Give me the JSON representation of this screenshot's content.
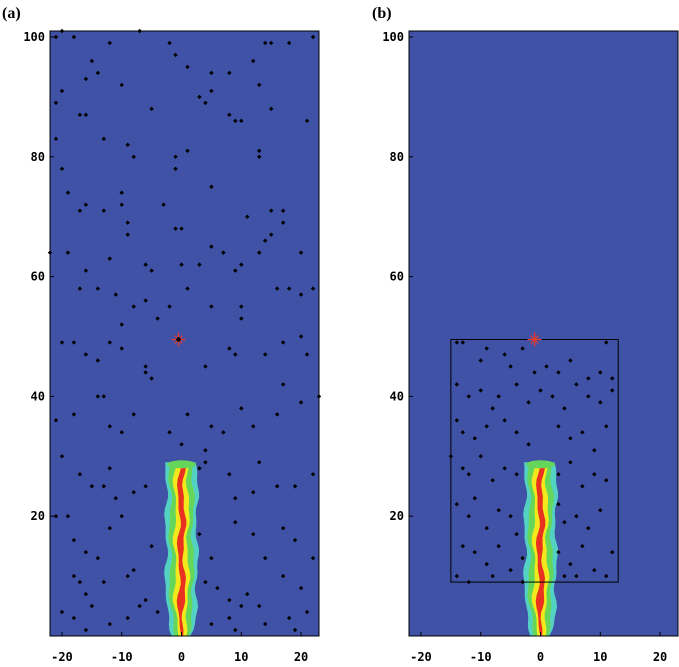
{
  "chart_data": [
    {
      "type": "scatter",
      "panel_label": "(a)",
      "xlim": [
        -22,
        23
      ],
      "ylim": [
        0,
        101
      ],
      "xticks": [
        -20,
        -10,
        0,
        10,
        20
      ],
      "yticks": [
        20,
        40,
        60,
        80,
        100
      ],
      "xtick_labels": [
        "-20",
        "-10",
        "0",
        "10",
        "20"
      ],
      "ytick_labels": [
        "20",
        "40",
        "60",
        "80",
        "100"
      ],
      "background_color": "#3f52a6",
      "source_marker": {
        "x": -0.5,
        "y": 49.5,
        "symbol": "star",
        "color": "#e53a2b"
      },
      "plume": {
        "x_center": 0,
        "y_range": [
          0,
          29
        ],
        "colors": [
          "#e8321f",
          "#f2e81b",
          "#66d65a",
          "#53d2c4"
        ]
      },
      "points": [
        [
          -21,
          100
        ],
        [
          -20,
          101
        ],
        [
          -18,
          100
        ],
        [
          -12,
          99
        ],
        [
          -7,
          101
        ],
        [
          -2,
          99
        ],
        [
          -1,
          97
        ],
        [
          1,
          95
        ],
        [
          5,
          94
        ],
        [
          8,
          94
        ],
        [
          14,
          99
        ],
        [
          15,
          99
        ],
        [
          18,
          99
        ],
        [
          22,
          100
        ],
        [
          -21,
          89
        ],
        [
          -20,
          91
        ],
        [
          -15,
          96
        ],
        [
          -14,
          94
        ],
        [
          -16,
          93
        ],
        [
          -10,
          92
        ],
        [
          -16,
          87
        ],
        [
          -17,
          87
        ],
        [
          -5,
          88
        ],
        [
          3,
          90
        ],
        [
          4,
          89
        ],
        [
          5,
          91
        ],
        [
          8,
          87
        ],
        [
          9,
          86
        ],
        [
          10,
          86
        ],
        [
          12,
          96
        ],
        [
          13,
          92
        ],
        [
          15,
          88
        ],
        [
          21,
          86
        ],
        [
          -21,
          83
        ],
        [
          -13,
          83
        ],
        [
          -9,
          82
        ],
        [
          -8,
          80
        ],
        [
          -1,
          78
        ],
        [
          -1,
          80
        ],
        [
          1,
          81
        ],
        [
          13,
          81
        ],
        [
          13,
          80
        ],
        [
          -20,
          78
        ],
        [
          -19,
          74
        ],
        [
          -17,
          71
        ],
        [
          -16,
          72
        ],
        [
          -13,
          71
        ],
        [
          -10,
          74
        ],
        [
          -10,
          72
        ],
        [
          -9,
          69
        ],
        [
          -9,
          67
        ],
        [
          -3,
          72
        ],
        [
          -1,
          68
        ],
        [
          0,
          68
        ],
        [
          5,
          75
        ],
        [
          11,
          70
        ],
        [
          15,
          71
        ],
        [
          15,
          67
        ],
        [
          17,
          71
        ],
        [
          -22,
          64
        ],
        [
          -19,
          64
        ],
        [
          -16,
          61
        ],
        [
          -12,
          63
        ],
        [
          -6,
          62
        ],
        [
          -5,
          61
        ],
        [
          0,
          62
        ],
        [
          3,
          62
        ],
        [
          5,
          65
        ],
        [
          7,
          64
        ],
        [
          9,
          61
        ],
        [
          10,
          62
        ],
        [
          13,
          64
        ],
        [
          14,
          66
        ],
        [
          17,
          69
        ],
        [
          20,
          64
        ],
        [
          -17,
          58
        ],
        [
          -14,
          58
        ],
        [
          -11,
          57
        ],
        [
          -8,
          55
        ],
        [
          -6,
          56
        ],
        [
          -4,
          53
        ],
        [
          -2,
          55
        ],
        [
          1,
          58
        ],
        [
          5,
          55
        ],
        [
          10,
          53
        ],
        [
          10,
          55
        ],
        [
          16,
          58
        ],
        [
          18,
          58
        ],
        [
          20,
          57
        ],
        [
          22,
          58
        ],
        [
          -20,
          49
        ],
        [
          -18,
          49
        ],
        [
          -16,
          47
        ],
        [
          -14,
          46
        ],
        [
          -12,
          49
        ],
        [
          -10,
          52
        ],
        [
          -10,
          48
        ],
        [
          -6,
          45
        ],
        [
          -6,
          44
        ],
        [
          -5,
          43
        ],
        [
          4,
          45
        ],
        [
          8,
          48
        ],
        [
          9,
          47
        ],
        [
          14,
          47
        ],
        [
          17,
          49
        ],
        [
          20,
          50
        ],
        [
          21,
          47
        ],
        [
          -21,
          36
        ],
        [
          -18,
          37
        ],
        [
          -14,
          40
        ],
        [
          -13,
          40
        ],
        [
          -12,
          35
        ],
        [
          -10,
          34
        ],
        [
          -8,
          37
        ],
        [
          -2,
          34
        ],
        [
          0,
          32
        ],
        [
          1,
          37
        ],
        [
          4,
          31
        ],
        [
          5,
          35
        ],
        [
          7,
          34
        ],
        [
          10,
          38
        ],
        [
          12,
          35
        ],
        [
          16,
          37
        ],
        [
          17,
          42
        ],
        [
          20,
          39
        ],
        [
          23,
          40
        ],
        [
          -20,
          30
        ],
        [
          -17,
          27
        ],
        [
          -15,
          25
        ],
        [
          -13,
          25
        ],
        [
          -12,
          28
        ],
        [
          -11,
          23
        ],
        [
          -8,
          24
        ],
        [
          -6,
          25
        ],
        [
          3,
          28
        ],
        [
          4,
          29
        ],
        [
          8,
          27
        ],
        [
          9,
          23
        ],
        [
          12,
          24
        ],
        [
          13,
          29
        ],
        [
          16,
          25
        ],
        [
          19,
          25
        ],
        [
          22,
          27
        ],
        [
          -21,
          20
        ],
        [
          -19,
          20
        ],
        [
          -18,
          16
        ],
        [
          -16,
          14
        ],
        [
          -14,
          13
        ],
        [
          -12,
          18
        ],
        [
          -10,
          20
        ],
        [
          -8,
          11
        ],
        [
          -5,
          15
        ],
        [
          3,
          17
        ],
        [
          5,
          13
        ],
        [
          9,
          19
        ],
        [
          12,
          17
        ],
        [
          14,
          13
        ],
        [
          17,
          18
        ],
        [
          19,
          16
        ],
        [
          22,
          13
        ],
        [
          -18,
          10
        ],
        [
          -17,
          9
        ],
        [
          -16,
          7
        ],
        [
          -13,
          9
        ],
        [
          -9,
          10
        ],
        [
          -6,
          6
        ],
        [
          -4,
          4
        ],
        [
          4,
          9
        ],
        [
          6,
          8
        ],
        [
          8,
          6
        ],
        [
          11,
          7
        ],
        [
          13,
          5
        ],
        [
          17,
          10
        ],
        [
          20,
          8
        ],
        [
          -20,
          4
        ],
        [
          -18,
          3
        ],
        [
          -15,
          5
        ],
        [
          -12,
          2
        ],
        [
          -9,
          3
        ],
        [
          -7,
          5
        ],
        [
          5,
          2
        ],
        [
          8,
          3
        ],
        [
          10,
          5
        ],
        [
          14,
          2
        ],
        [
          18,
          3
        ],
        [
          21,
          4
        ],
        [
          -16,
          1
        ],
        [
          9,
          1
        ],
        [
          19,
          1
        ]
      ]
    },
    {
      "type": "scatter",
      "panel_label": "(b)",
      "xlim": [
        -22,
        23
      ],
      "ylim": [
        0,
        101
      ],
      "xticks": [
        -20,
        -10,
        0,
        10,
        20
      ],
      "yticks": [
        20,
        40,
        60,
        80,
        100
      ],
      "xtick_labels": [
        "-20",
        "-10",
        "0",
        "10",
        "20"
      ],
      "ytick_labels": [
        "20",
        "40",
        "60",
        "80",
        "100"
      ],
      "background_color": "#3f52a6",
      "source_marker": {
        "x": -1,
        "y": 49.5,
        "symbol": "star",
        "color": "#e53a2b"
      },
      "plume": {
        "x_center": 0,
        "y_range": [
          0,
          29
        ],
        "colors": [
          "#e8321f",
          "#f2e81b",
          "#66d65a",
          "#53d2c4"
        ]
      },
      "box": {
        "x": [
          -15,
          13
        ],
        "y": [
          9,
          49.5
        ]
      },
      "points": [
        [
          -14,
          49
        ],
        [
          -13,
          49
        ],
        [
          -10,
          46
        ],
        [
          -9,
          48
        ],
        [
          -6,
          47
        ],
        [
          -5,
          45
        ],
        [
          -3,
          48
        ],
        [
          -1,
          44
        ],
        [
          1,
          45
        ],
        [
          3,
          44
        ],
        [
          5,
          46
        ],
        [
          8,
          43
        ],
        [
          10,
          44
        ],
        [
          11,
          49
        ],
        [
          12,
          43
        ],
        [
          -14,
          42
        ],
        [
          -12,
          40
        ],
        [
          -10,
          41
        ],
        [
          -8,
          38
        ],
        [
          -7,
          40
        ],
        [
          -4,
          42
        ],
        [
          -2,
          39
        ],
        [
          0,
          41
        ],
        [
          2,
          40
        ],
        [
          4,
          38
        ],
        [
          6,
          42
        ],
        [
          8,
          40
        ],
        [
          10,
          39
        ],
        [
          12,
          41
        ],
        [
          -14,
          36
        ],
        [
          -13,
          34
        ],
        [
          -11,
          33
        ],
        [
          -9,
          35
        ],
        [
          -6,
          36
        ],
        [
          -4,
          34
        ],
        [
          -2,
          32
        ],
        [
          3,
          35
        ],
        [
          5,
          33
        ],
        [
          7,
          34
        ],
        [
          9,
          31
        ],
        [
          11,
          35
        ],
        [
          -15,
          30
        ],
        [
          -13,
          28
        ],
        [
          -12,
          27
        ],
        [
          -10,
          30
        ],
        [
          -8,
          26
        ],
        [
          -6,
          28
        ],
        [
          -4,
          27
        ],
        [
          3,
          27
        ],
        [
          5,
          29
        ],
        [
          7,
          25
        ],
        [
          9,
          27
        ],
        [
          11,
          26
        ],
        [
          -14,
          22
        ],
        [
          -12,
          20
        ],
        [
          -11,
          23
        ],
        [
          -9,
          18
        ],
        [
          -7,
          21
        ],
        [
          -5,
          20
        ],
        [
          -4,
          17
        ],
        [
          3,
          22
        ],
        [
          4,
          19
        ],
        [
          6,
          20
        ],
        [
          8,
          18
        ],
        [
          10,
          21
        ],
        [
          -13,
          15
        ],
        [
          -11,
          14
        ],
        [
          -9,
          12
        ],
        [
          -7,
          15
        ],
        [
          -5,
          11
        ],
        [
          -3,
          13
        ],
        [
          3,
          14
        ],
        [
          5,
          12
        ],
        [
          7,
          15
        ],
        [
          9,
          11
        ],
        [
          12,
          14
        ],
        [
          -14,
          10
        ],
        [
          -12,
          9
        ],
        [
          -8,
          10
        ],
        [
          -3,
          9
        ],
        [
          4,
          10
        ],
        [
          6,
          10
        ],
        [
          11,
          10
        ]
      ]
    }
  ]
}
